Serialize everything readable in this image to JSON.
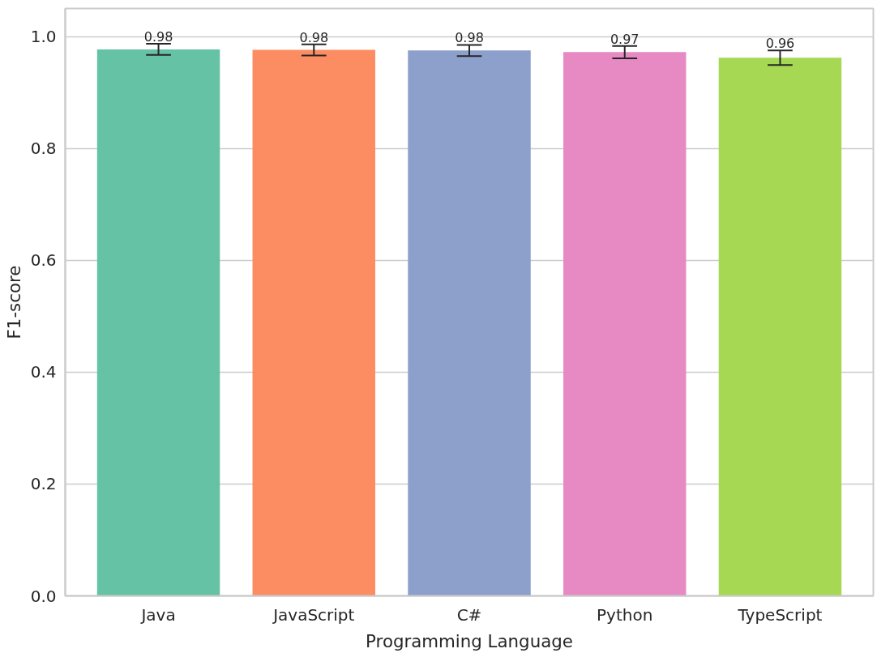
{
  "chart_data": {
    "type": "bar",
    "xlabel": "Programming Language",
    "ylabel": "F1-score",
    "categories": [
      "Java",
      "JavaScript",
      "C#",
      "Python",
      "TypeScript"
    ],
    "values": [
      0.977,
      0.976,
      0.975,
      0.972,
      0.962
    ],
    "colors": [
      "#66c2a5",
      "#fc8d62",
      "#8da0cb",
      "#e78ac3",
      "#a6d854"
    ],
    "errors": [
      0.01,
      0.01,
      0.01,
      0.011,
      0.013
    ],
    "value_labels": [
      "0.98",
      "0.98",
      "0.98",
      "0.97",
      "0.96"
    ],
    "ylim": [
      0,
      1.05
    ],
    "yticks": [
      {
        "value": 0,
        "label": "0.0"
      },
      {
        "value": 0.2,
        "label": "0.2"
      },
      {
        "value": 0.4,
        "label": "0.4"
      },
      {
        "value": 0.6,
        "label": "0.6"
      },
      {
        "value": 0.8,
        "label": "0.8"
      },
      {
        "value": 1.0,
        "label": "1.0"
      }
    ],
    "grid": "y"
  }
}
